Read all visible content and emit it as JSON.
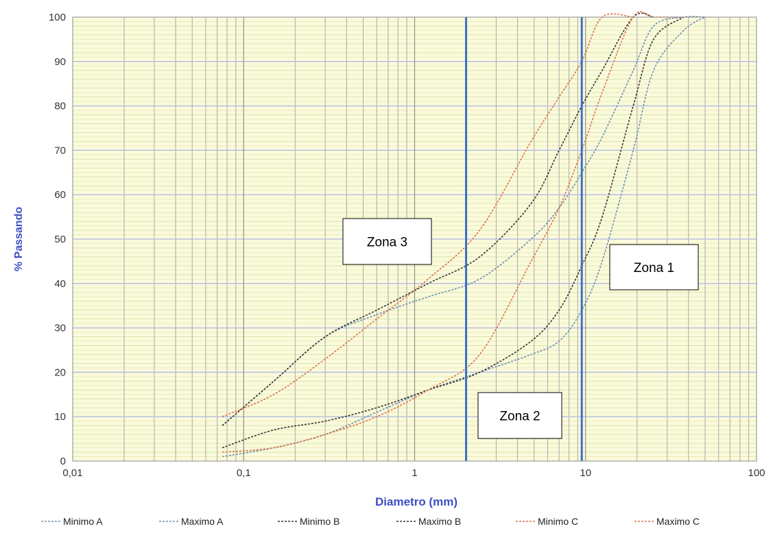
{
  "chart_data": {
    "type": "line",
    "xscale": "log",
    "xlim": [
      0.01,
      100
    ],
    "ylim": [
      0,
      100
    ],
    "xlabel": "Diametro (mm)",
    "ylabel": "% Passando",
    "x_ticks": [
      "0,01",
      "0,1",
      "1",
      "10",
      "100"
    ],
    "y_ticks": [
      "0",
      "10",
      "20",
      "30",
      "40",
      "50",
      "60",
      "70",
      "80",
      "90",
      "100"
    ],
    "grid": true,
    "legend_position": "bottom",
    "vertical_lines": [
      {
        "x": 2,
        "color": "#3a6fc9"
      },
      {
        "x": 9.5,
        "color": "#3a6fc9"
      }
    ],
    "zones": [
      {
        "label": "Zona 3"
      },
      {
        "label": "Zona 1"
      },
      {
        "label": "Zona 2"
      }
    ],
    "series": [
      {
        "name": "Minimo A",
        "color": "#6a8fb0",
        "points": [
          [
            0.075,
            1
          ],
          [
            0.15,
            3
          ],
          [
            0.3,
            6
          ],
          [
            0.6,
            11
          ],
          [
            1.2,
            16
          ],
          [
            2.4,
            20
          ],
          [
            4.8,
            24
          ],
          [
            7,
            27
          ],
          [
            9.5,
            34
          ],
          [
            12.5,
            45
          ],
          [
            19,
            70
          ],
          [
            25,
            88
          ],
          [
            37.5,
            97
          ],
          [
            50,
            100
          ]
        ]
      },
      {
        "name": "Maximo A",
        "color": "#6a8fb0",
        "points": [
          [
            0.075,
            8
          ],
          [
            0.15,
            18
          ],
          [
            0.3,
            28
          ],
          [
            0.6,
            33
          ],
          [
            1.2,
            37
          ],
          [
            2.4,
            41
          ],
          [
            4.8,
            50
          ],
          [
            7,
            57
          ],
          [
            9.5,
            65
          ],
          [
            12.5,
            73
          ],
          [
            19,
            88
          ],
          [
            25,
            98
          ],
          [
            37.5,
            100
          ],
          [
            50,
            100
          ]
        ]
      },
      {
        "name": "Minimo B",
        "color": "#333333",
        "points": [
          [
            0.075,
            3
          ],
          [
            0.15,
            7
          ],
          [
            0.3,
            9
          ],
          [
            0.6,
            12
          ],
          [
            1.2,
            16
          ],
          [
            2.4,
            20
          ],
          [
            4.8,
            27
          ],
          [
            7,
            34
          ],
          [
            9.5,
            44
          ],
          [
            12.5,
            55
          ],
          [
            19,
            80
          ],
          [
            25,
            95
          ],
          [
            37.5,
            100
          ]
        ]
      },
      {
        "name": "Maximo B",
        "color": "#333333",
        "points": [
          [
            0.075,
            8
          ],
          [
            0.15,
            18
          ],
          [
            0.3,
            28
          ],
          [
            0.6,
            34
          ],
          [
            1.2,
            40
          ],
          [
            2.4,
            46
          ],
          [
            4.8,
            58
          ],
          [
            7,
            70
          ],
          [
            9.5,
            80
          ],
          [
            12.5,
            88
          ],
          [
            19,
            100
          ],
          [
            25,
            100
          ]
        ]
      },
      {
        "name": "Minimo C",
        "color": "#e0704a",
        "points": [
          [
            0.075,
            2
          ],
          [
            0.15,
            3
          ],
          [
            0.3,
            6
          ],
          [
            0.6,
            10
          ],
          [
            1.2,
            16
          ],
          [
            2.4,
            24
          ],
          [
            4.8,
            45
          ],
          [
            7,
            57
          ],
          [
            9.5,
            70
          ],
          [
            12.5,
            83
          ],
          [
            19,
            100
          ],
          [
            25,
            100
          ],
          [
            37.5,
            100
          ]
        ]
      },
      {
        "name": "Maximo C",
        "color": "#e0704a",
        "points": [
          [
            0.075,
            10
          ],
          [
            0.15,
            15
          ],
          [
            0.3,
            23
          ],
          [
            0.6,
            32
          ],
          [
            1.2,
            41
          ],
          [
            2.4,
            52
          ],
          [
            4.8,
            72
          ],
          [
            7,
            82
          ],
          [
            9.5,
            90
          ],
          [
            12.5,
            100
          ],
          [
            19,
            100
          ]
        ]
      }
    ]
  }
}
